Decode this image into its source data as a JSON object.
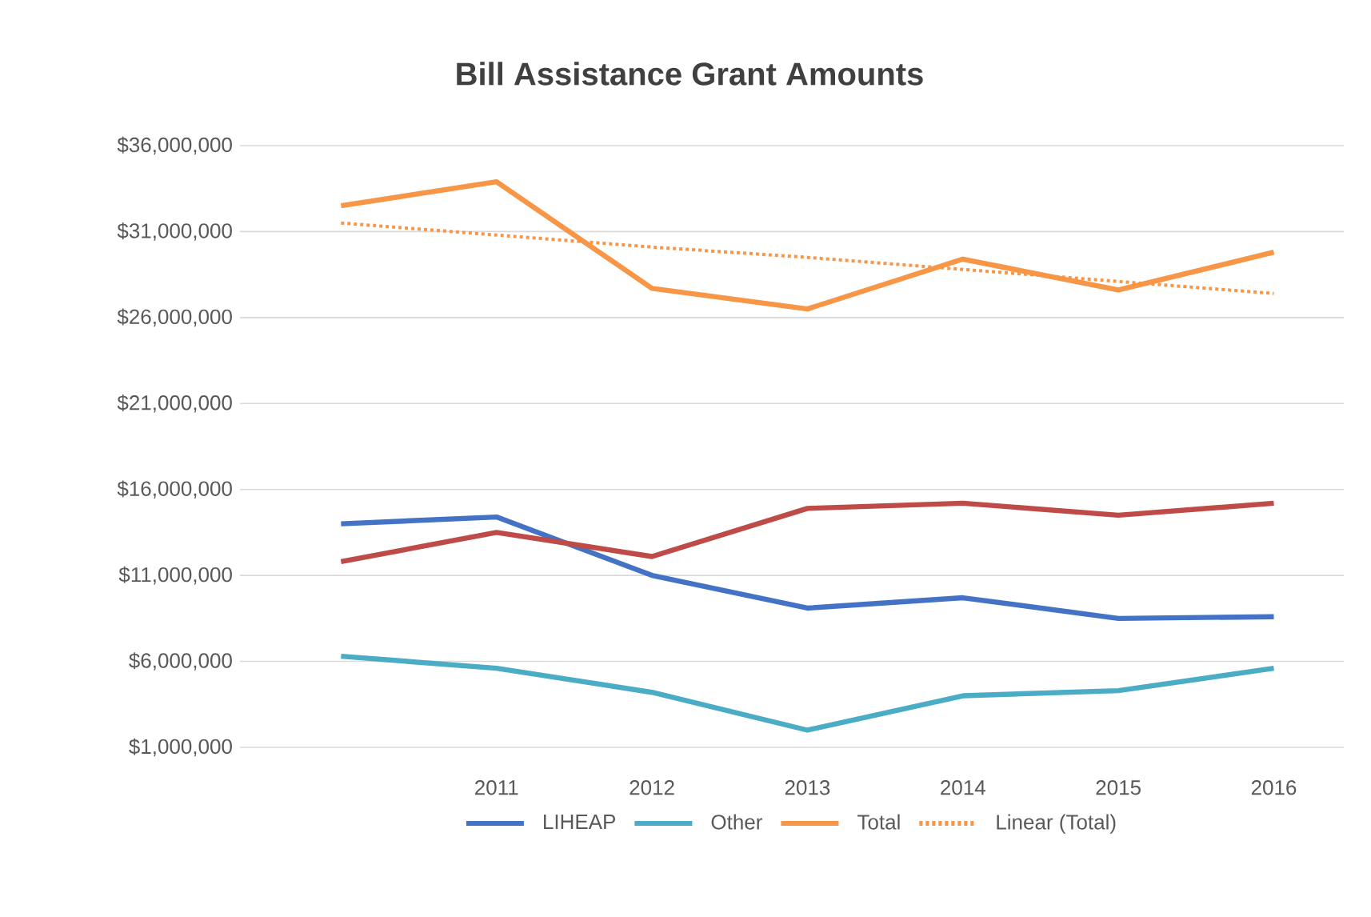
{
  "chart_data": {
    "type": "line",
    "title": "Bill Assistance Grant Amounts",
    "categories": [
      null,
      "2011",
      "2012",
      "2013",
      "2014",
      "2015",
      "2016"
    ],
    "series": [
      {
        "name": "LIHEAP",
        "color": "#4472c4",
        "values": [
          14000000,
          14400000,
          11000000,
          9100000,
          9700000,
          8500000,
          8600000
        ]
      },
      {
        "color": "#be4b48",
        "values": [
          11800000,
          13500000,
          12100000,
          14900000,
          15200000,
          14500000,
          15200000
        ]
      },
      {
        "name": "Other",
        "color": "#4bacc6",
        "values": [
          6300000,
          5600000,
          4200000,
          2000000,
          4000000,
          4300000,
          5600000
        ]
      },
      {
        "name": "Total",
        "color": "#f79646",
        "values": [
          32500000,
          33900000,
          27700000,
          26500000,
          29400000,
          27600000,
          29800000
        ]
      },
      {
        "name": "Linear (Total)",
        "color": "#f79646",
        "line_style": "dotted",
        "values": [
          31500000,
          30800000,
          30100000,
          29500000,
          28800000,
          28100000,
          27400000
        ]
      }
    ],
    "ylim": [
      1000000,
      36000000
    ],
    "yticks": [
      {
        "value": 1000000,
        "label": "$1,000,000"
      },
      {
        "value": 6000000,
        "label": "$6,000,000"
      },
      {
        "value": 11000000,
        "label": "$11,000,000"
      },
      {
        "value": 16000000,
        "label": "$16,000,000"
      },
      {
        "value": 21000000,
        "label": "$21,000,000"
      },
      {
        "value": 26000000,
        "label": "$26,000,000"
      },
      {
        "value": 31000000,
        "label": "$31,000,000"
      },
      {
        "value": 36000000,
        "label": "$36,000,000"
      }
    ],
    "grid": "y",
    "legend": "bottom",
    "marker": "none",
    "line_style": "solid"
  }
}
